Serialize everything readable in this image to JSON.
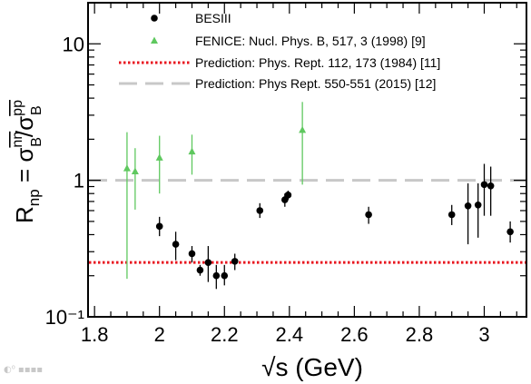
{
  "chart_data": {
    "type": "scatter",
    "xlabel_parts": {
      "sqrt": "√",
      "var": "s",
      "unit": " (GeV)"
    },
    "ylabel_parts": {
      "R": "R",
      "R_sub": "np",
      "eq": " = σ",
      "num_sup": "nn",
      "num_sub": "B",
      "slash": "/σ",
      "den_sup": "pp",
      "den_sub": "B"
    },
    "xlim": [
      1.78,
      3.13
    ],
    "ylim": [
      0.1,
      20
    ],
    "yscale": "log",
    "x_ticks": [
      1.8,
      2.0,
      2.2,
      2.4,
      2.6,
      2.8,
      3.0
    ],
    "x_tick_labels": [
      "1.8",
      "2",
      "2.2",
      "2.4",
      "2.6",
      "2.8",
      "3"
    ],
    "y_ticks": [
      0.1,
      1,
      10
    ],
    "y_tick_labels": [
      "10⁻¹",
      "1",
      "10"
    ],
    "grid": false,
    "legend_position": "top",
    "series": [
      {
        "name": "BESIII",
        "marker": "circle",
        "color": "#000000",
        "points": [
          {
            "x": 2.0,
            "y": 0.46,
            "lo": 0.39,
            "hi": 0.54
          },
          {
            "x": 2.05,
            "y": 0.34,
            "lo": 0.26,
            "hi": 0.42
          },
          {
            "x": 2.1,
            "y": 0.29,
            "lo": 0.25,
            "hi": 0.33
          },
          {
            "x": 2.125,
            "y": 0.22,
            "lo": 0.2,
            "hi": 0.24
          },
          {
            "x": 2.15,
            "y": 0.25,
            "lo": 0.18,
            "hi": 0.33
          },
          {
            "x": 2.175,
            "y": 0.2,
            "lo": 0.16,
            "hi": 0.24
          },
          {
            "x": 2.2,
            "y": 0.2,
            "lo": 0.17,
            "hi": 0.24
          },
          {
            "x": 2.232,
            "y": 0.255,
            "lo": 0.22,
            "hi": 0.29
          },
          {
            "x": 2.309,
            "y": 0.6,
            "lo": 0.53,
            "hi": 0.68
          },
          {
            "x": 2.386,
            "y": 0.72,
            "lo": 0.64,
            "hi": 0.8
          },
          {
            "x": 2.396,
            "y": 0.78,
            "lo": 0.72,
            "hi": 0.84
          },
          {
            "x": 2.644,
            "y": 0.56,
            "lo": 0.48,
            "hi": 0.64
          },
          {
            "x": 2.9,
            "y": 0.56,
            "lo": 0.47,
            "hi": 0.66
          },
          {
            "x": 2.95,
            "y": 0.65,
            "lo": 0.34,
            "hi": 0.95
          },
          {
            "x": 2.981,
            "y": 0.66,
            "lo": 0.38,
            "hi": 0.95
          },
          {
            "x": 3.0,
            "y": 0.93,
            "lo": 0.55,
            "hi": 1.32
          },
          {
            "x": 3.02,
            "y": 0.91,
            "lo": 0.55,
            "hi": 1.26
          },
          {
            "x": 3.08,
            "y": 0.42,
            "lo": 0.35,
            "hi": 0.5
          }
        ]
      },
      {
        "name": "FENICE: Nucl. Phys. B, 517, 3 (1998) [9]",
        "marker": "triangle",
        "color": "#5fc85f",
        "points": [
          {
            "x": 1.9,
            "y": 1.22,
            "lo": 0.19,
            "hi": 2.25
          },
          {
            "x": 1.925,
            "y": 1.16,
            "lo": 0.61,
            "hi": 1.72
          },
          {
            "x": 2.0,
            "y": 1.46,
            "lo": 0.8,
            "hi": 2.12
          },
          {
            "x": 2.1,
            "y": 1.62,
            "lo": 1.1,
            "hi": 2.16
          },
          {
            "x": 2.44,
            "y": 2.33,
            "lo": 0.93,
            "hi": 3.75
          }
        ]
      }
    ],
    "reference_lines": [
      {
        "name": "Prediction: Phys. Rept. 112, 173 (1984) [11]",
        "y": 0.25,
        "color": "#e8141e",
        "style": "dotted"
      },
      {
        "name": "Prediction: Phys Rept. 550-551 (2015) [12]",
        "y": 1.0,
        "color": "#c8c8c8",
        "style": "dashed"
      }
    ]
  },
  "colors": {
    "axis": "#000000",
    "background": "#ffffff"
  }
}
